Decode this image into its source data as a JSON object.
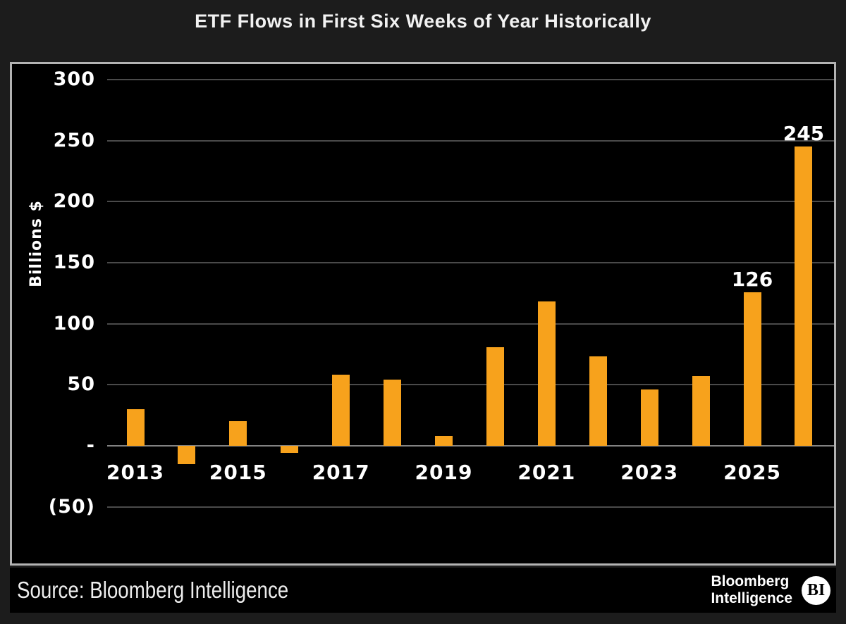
{
  "title": "ETF Flows in First Six Weeks of Year Historically",
  "chart_data": {
    "type": "bar",
    "title": "ETF Flows in First Six Weeks of Year Historically",
    "ylabel": "Billions $",
    "xlabel": "",
    "ylim": [
      -50,
      300
    ],
    "grid": "horizontal",
    "legend": "none",
    "bar_color": "#F7A21C",
    "categories": [
      "2013",
      "2014",
      "2015",
      "2016",
      "2017",
      "2018",
      "2019",
      "2020",
      "2021",
      "2022",
      "2023",
      "2024",
      "2025",
      "2026"
    ],
    "values": [
      30,
      -15,
      20,
      -6,
      58,
      54,
      8,
      81,
      118,
      73,
      46,
      57,
      126,
      245
    ],
    "x_tick_labels": [
      "2013",
      "2015",
      "2017",
      "2019",
      "2021",
      "2023",
      "2025"
    ],
    "y_ticks": [
      {
        "label": "300",
        "value": 300
      },
      {
        "label": "250",
        "value": 250
      },
      {
        "label": "200",
        "value": 200
      },
      {
        "label": "150",
        "value": 150
      },
      {
        "label": "100",
        "value": 100
      },
      {
        "label": "50",
        "value": 50
      },
      {
        "label": "-",
        "value": 0
      },
      {
        "label": "(50)",
        "value": -50
      }
    ],
    "annotations": [
      {
        "category": "2025",
        "text": "126"
      },
      {
        "category": "2026",
        "text": "245"
      }
    ]
  },
  "footer": {
    "source": "Source: Bloomberg Intelligence",
    "logo": {
      "line1": "Bloomberg",
      "line2": "Intelligence",
      "badge": "BI"
    }
  },
  "colors": {
    "page_bg": "#1c1c1c",
    "panel_bg": "#000000",
    "panel_border": "#b3b3b3",
    "bar": "#F7A21C",
    "gridline": "#4a4a4a",
    "zero_line": "#828282",
    "text": "#ffffff"
  }
}
